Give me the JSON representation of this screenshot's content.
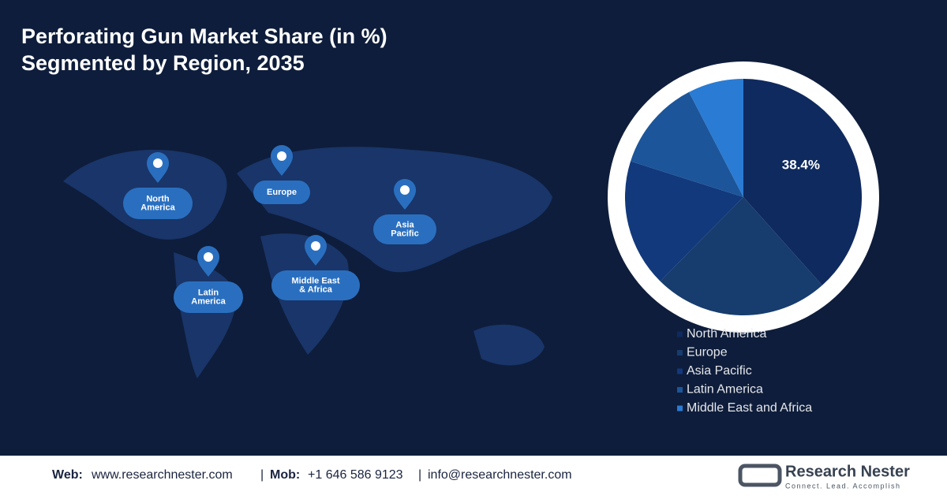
{
  "chart_data": {
    "type": "pie",
    "title": "Perforating Gun Market Share (in %)",
    "subtitle": "Segmented by Region, 2035",
    "categories": [
      "North America",
      "Europe",
      "Asia Pacific",
      "Latin America",
      "Middle East and Africa"
    ],
    "values": [
      38.4,
      24,
      17.5,
      12.5,
      7.6
    ],
    "value_labels": [
      "38.4%",
      null,
      null,
      null,
      null
    ],
    "colors": [
      "#0f2a5e",
      "#173c6e",
      "#12397c",
      "#1c5599",
      "#2a7bd3"
    ],
    "legend": "bottom"
  },
  "map": {
    "labels": [
      [
        "North",
        "America"
      ],
      [
        "Europe"
      ],
      [
        "Asia",
        "Pacific"
      ],
      [
        "Latin",
        "America"
      ],
      [
        "Middle East",
        "& Africa"
      ]
    ]
  },
  "footer": {
    "web_label": "Web:",
    "web": "www.researchnester.com",
    "separator": "|",
    "mob_label": "Mob:",
    "mob": "+1 646 586 9123",
    "email": "info@researchnester.com",
    "brand": "Research Nester",
    "tagline": "Connect. Lead. Accomplish"
  }
}
